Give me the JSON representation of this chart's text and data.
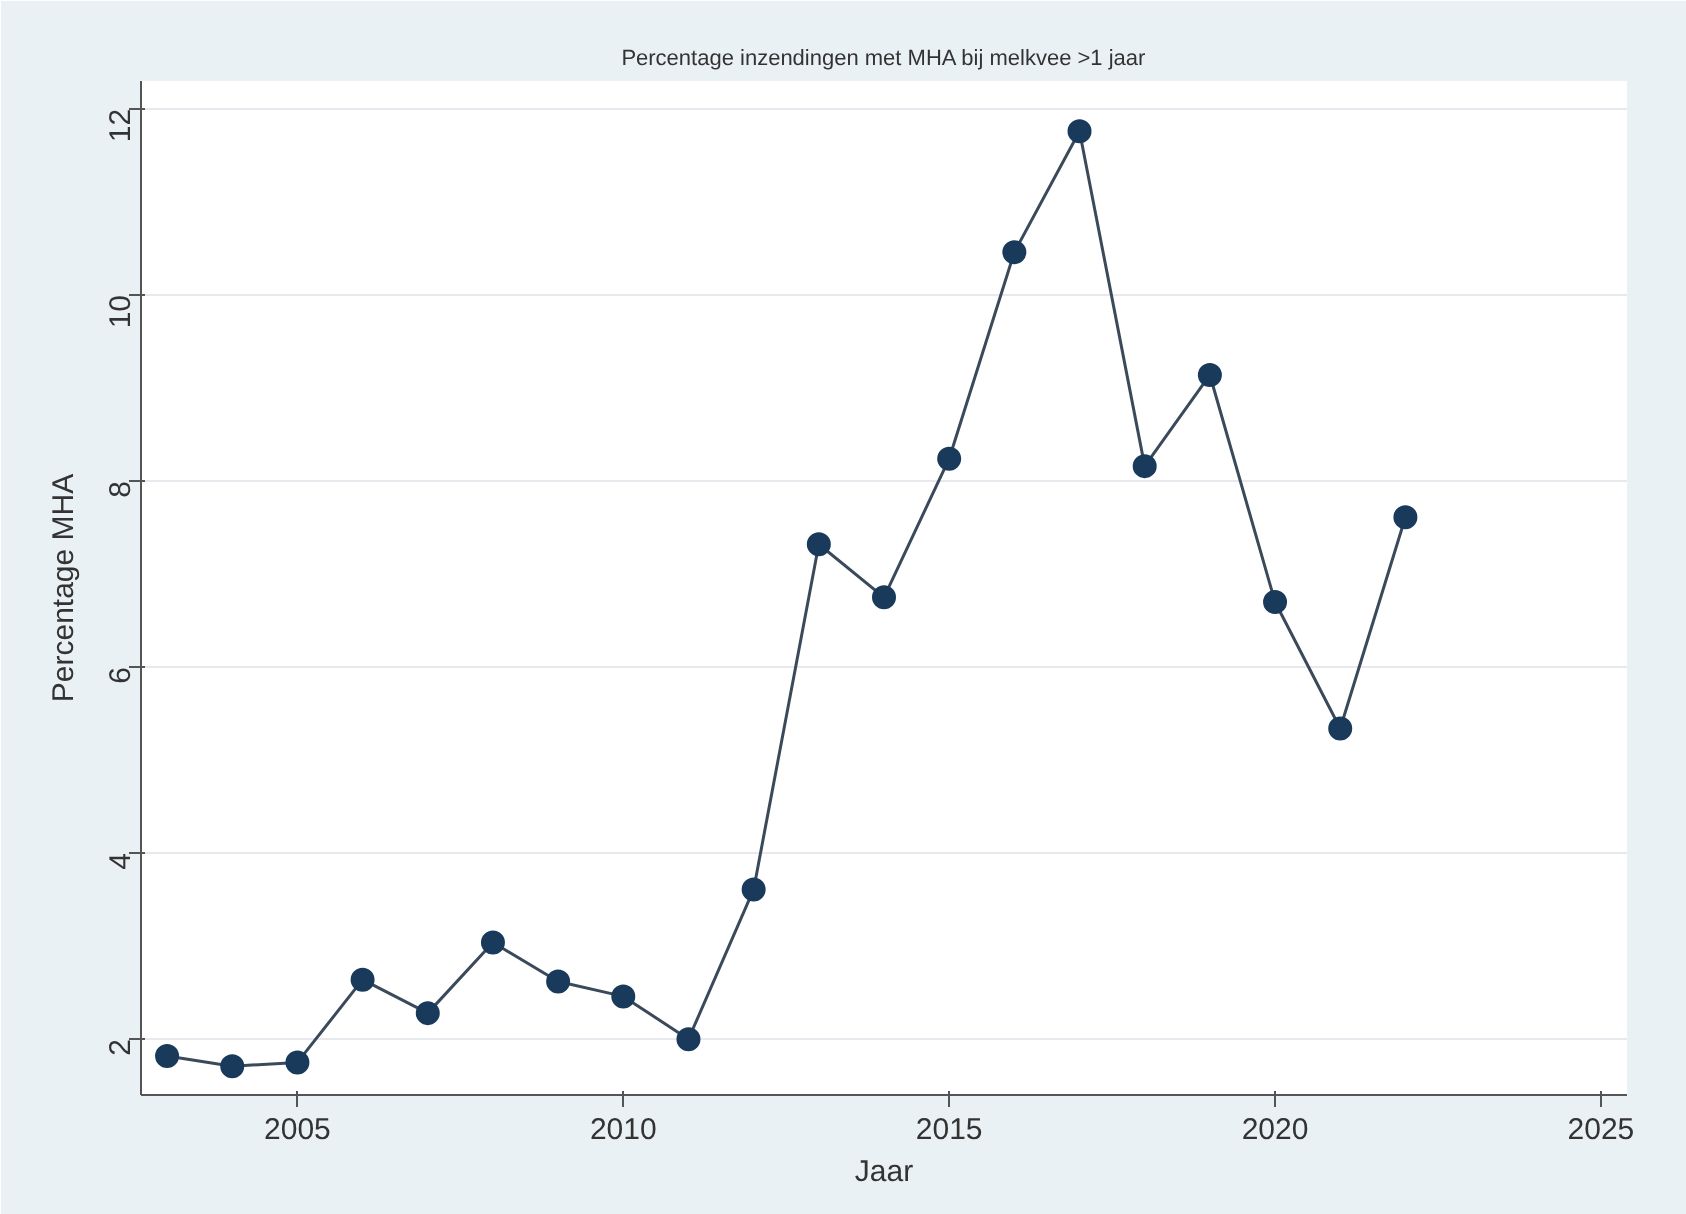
{
  "chart_data": {
    "type": "line",
    "title": "Percentage inzendingen met MHA bij melkvee >1 jaar",
    "xlabel": "Jaar",
    "ylabel": "Percentage MHA",
    "x": [
      2003,
      2004,
      2005,
      2006,
      2007,
      2008,
      2009,
      2010,
      2011,
      2012,
      2013,
      2014,
      2015,
      2016,
      2017,
      2018,
      2019,
      2020,
      2021,
      2022
    ],
    "series": [
      {
        "color": "#1a3a5c",
        "values": [
          1.82,
          1.71,
          1.75,
          2.64,
          2.28,
          3.04,
          2.62,
          2.46,
          2.0,
          3.61,
          7.32,
          6.75,
          8.24,
          10.46,
          11.76,
          8.16,
          9.14,
          6.7,
          5.34,
          7.61
        ]
      }
    ],
    "xlim": [
      2002.6,
      2025.4
    ],
    "ylim": [
      1.4,
      12.3
    ],
    "xticks": [
      2005,
      2010,
      2015,
      2020,
      2025
    ],
    "yticks": [
      2,
      4,
      6,
      8,
      10,
      12
    ],
    "grid": "y",
    "marker": "circle",
    "line_style": "solid"
  }
}
